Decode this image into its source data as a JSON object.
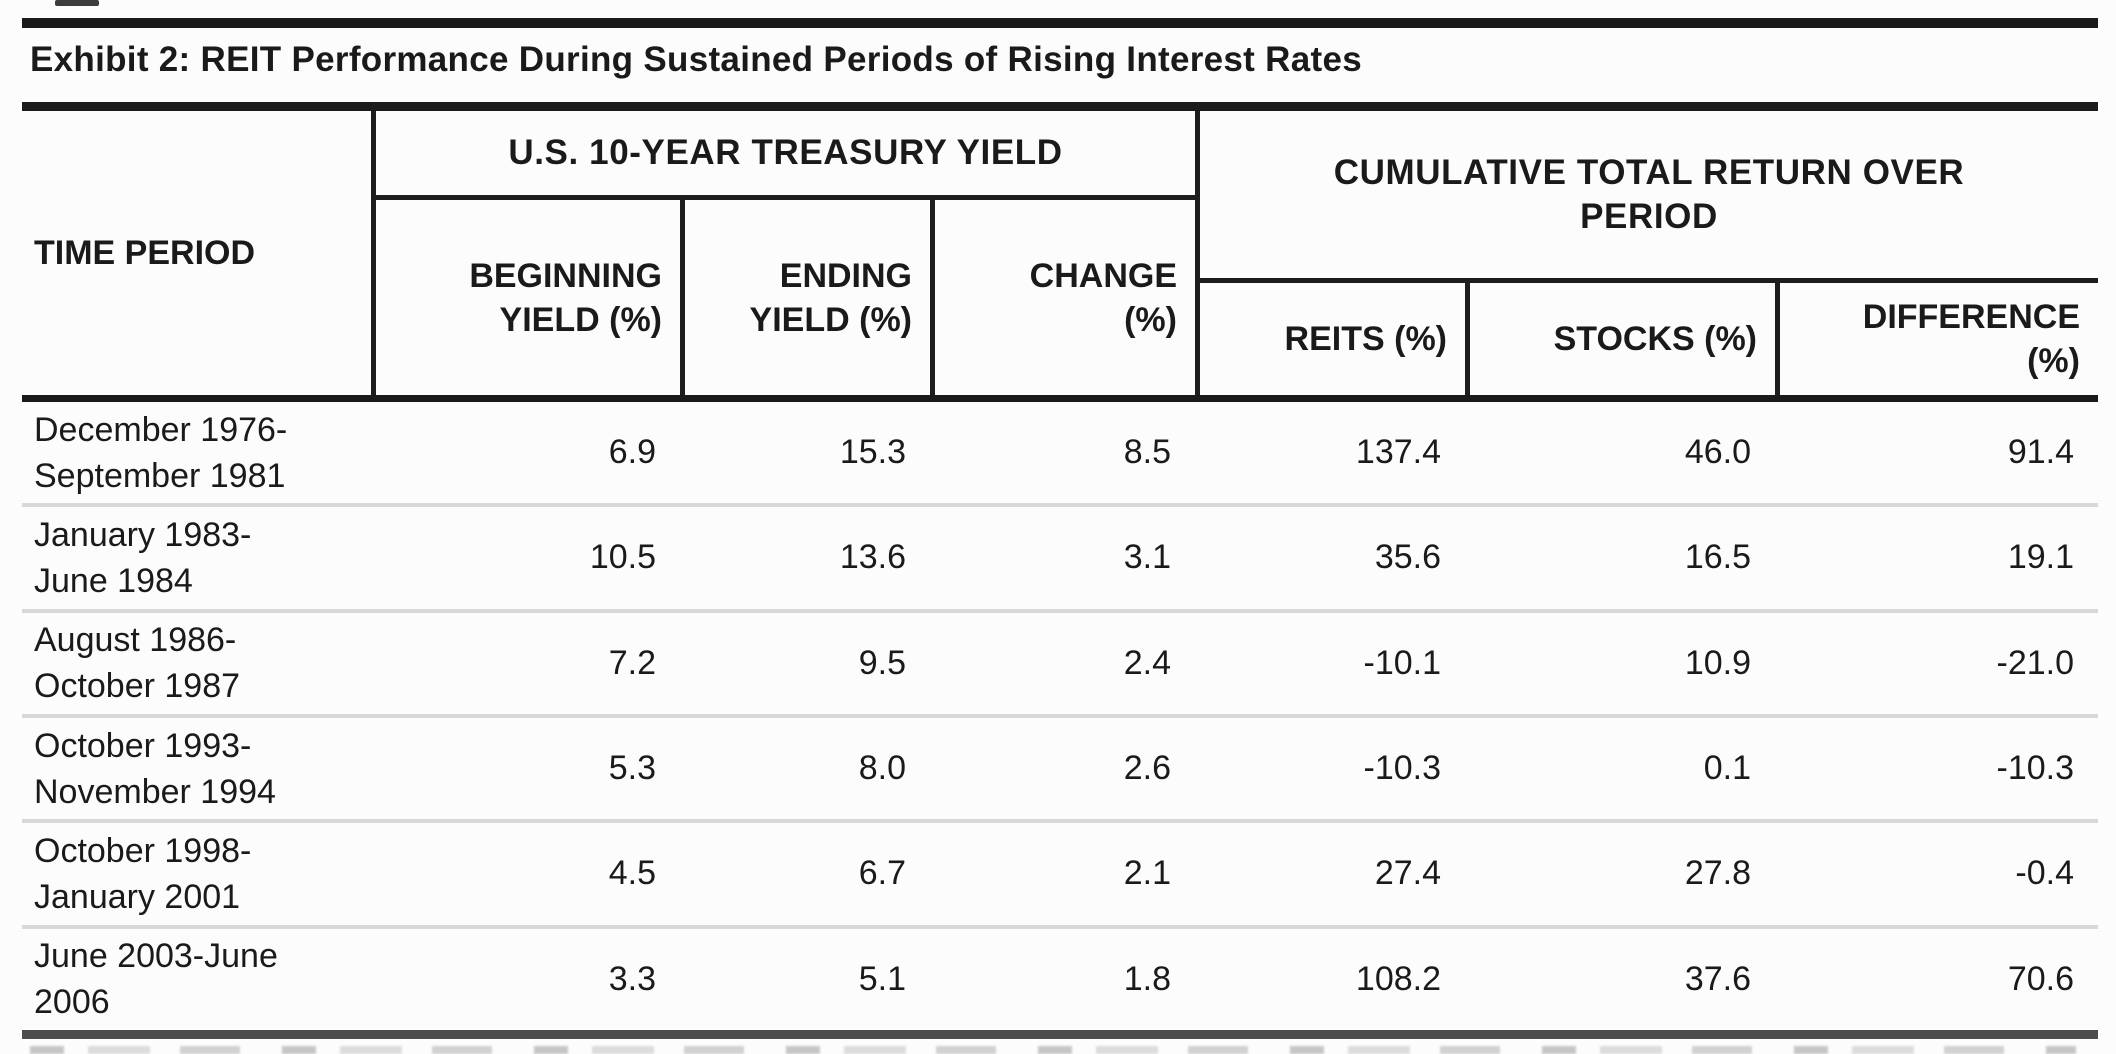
{
  "page": {
    "title": "Exhibit 2: REIT Performance During Sustained Periods of Rising Interest Rates"
  },
  "table": {
    "header": {
      "time_period": "TIME PERIOD",
      "treasury_group": "U.S. 10-YEAR TREASURY YIELD",
      "cumulative_group": "CUMULATIVE TOTAL RETURN OVER\nPERIOD",
      "beginning_yield": "BEGINNING\nYIELD (%)",
      "ending_yield": "ENDING\nYIELD (%)",
      "change": "CHANGE\n(%)",
      "reits": "REITS (%)",
      "stocks": "STOCKS (%)",
      "difference": "DIFFERENCE\n(%)"
    },
    "rows": [
      {
        "period": "December 1976-\nSeptember 1981",
        "beginning_yield": "6.9",
        "ending_yield": "15.3",
        "change": "8.5",
        "reits": "137.4",
        "stocks": "46.0",
        "difference": "91.4"
      },
      {
        "period": "January 1983-\nJune 1984",
        "beginning_yield": "10.5",
        "ending_yield": "13.6",
        "change": "3.1",
        "reits": "35.6",
        "stocks": "16.5",
        "difference": "19.1"
      },
      {
        "period": "August 1986-\nOctober 1987",
        "beginning_yield": "7.2",
        "ending_yield": "9.5",
        "change": "2.4",
        "reits": "-10.1",
        "stocks": "10.9",
        "difference": "-21.0"
      },
      {
        "period": "October 1993-\nNovember 1994",
        "beginning_yield": "5.3",
        "ending_yield": "8.0",
        "change": "2.6",
        "reits": "-10.3",
        "stocks": "0.1",
        "difference": "-10.3"
      },
      {
        "period": "October 1998-\nJanuary 2001",
        "beginning_yield": "4.5",
        "ending_yield": "6.7",
        "change": "2.1",
        "reits": "27.4",
        "stocks": "27.8",
        "difference": "-0.4"
      },
      {
        "period": "June 2003-June\n2006",
        "beginning_yield": "3.3",
        "ending_yield": "5.1",
        "change": "1.8",
        "reits": "108.2",
        "stocks": "37.6",
        "difference": "70.6"
      }
    ]
  },
  "colors": {
    "text": "#1a1a1a",
    "rule_dark": "#1a1a1a",
    "rule_bottom": "#4c4c4c",
    "row_separator": "#d8d8d8",
    "background": "#fcfcfc"
  }
}
